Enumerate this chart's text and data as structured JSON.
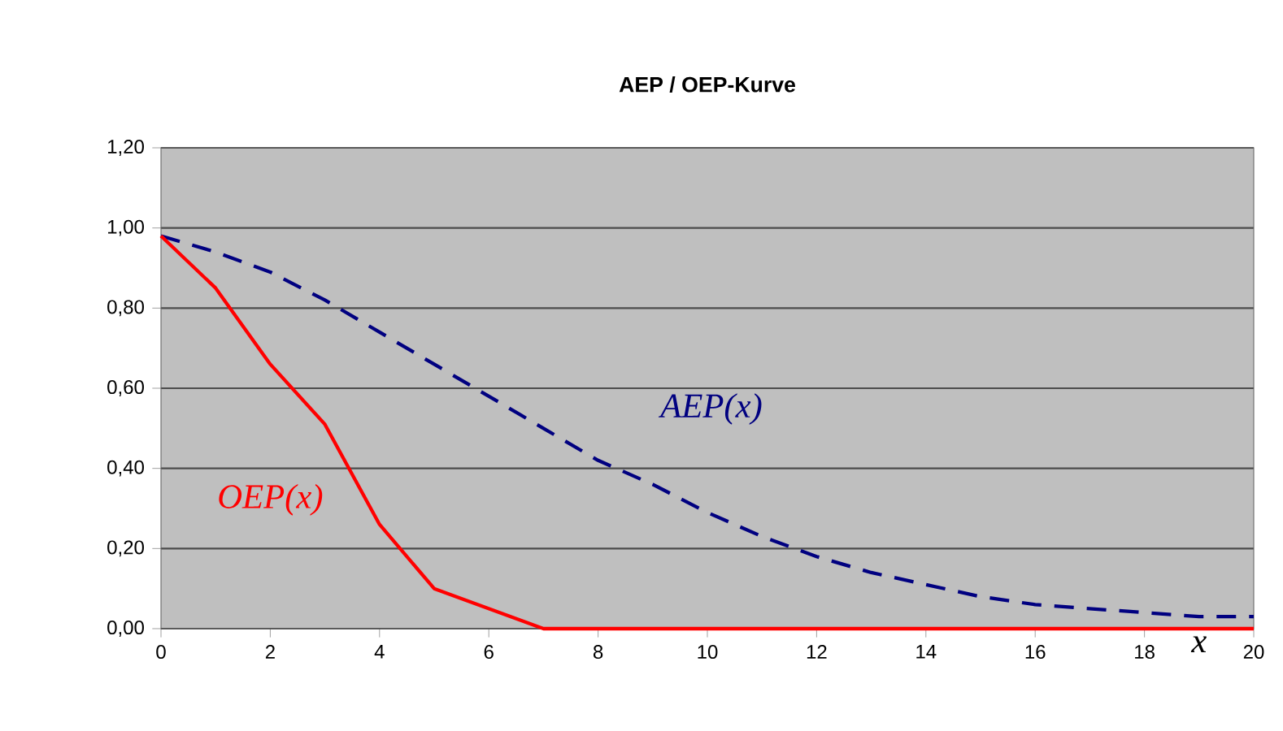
{
  "chart_data": {
    "type": "line",
    "title": "AEP / OEP-Kurve",
    "xlabel": "x",
    "x": [
      0,
      1,
      2,
      3,
      4,
      5,
      6,
      7,
      8,
      9,
      10,
      11,
      12,
      13,
      14,
      15,
      16,
      17,
      18,
      19,
      20
    ],
    "series": [
      {
        "name": "AEP(x)",
        "color": "#000080",
        "line_style": "dashed",
        "values": [
          0.98,
          0.94,
          0.89,
          0.82,
          0.74,
          0.66,
          0.58,
          0.5,
          0.42,
          0.36,
          0.29,
          0.23,
          0.18,
          0.14,
          0.11,
          0.08,
          0.06,
          0.05,
          0.04,
          0.03,
          0.03
        ]
      },
      {
        "name": "OEP(x)",
        "color": "#ff0000",
        "line_style": "solid",
        "values": [
          0.98,
          0.85,
          0.66,
          0.51,
          0.26,
          0.1,
          0.05,
          0,
          0,
          0,
          0,
          0,
          0,
          0,
          0,
          0,
          0,
          0,
          0,
          0,
          0
        ]
      }
    ],
    "xlim": [
      0,
      20
    ],
    "xticks": [
      0,
      2,
      4,
      6,
      8,
      10,
      12,
      14,
      16,
      18,
      20
    ],
    "ylim": [
      0,
      1.2
    ],
    "yticks": [
      {
        "value": 0,
        "label": "0,00"
      },
      {
        "value": 0.2,
        "label": "0,20"
      },
      {
        "value": 0.4,
        "label": "0,40"
      },
      {
        "value": 0.6,
        "label": "0,60"
      },
      {
        "value": 0.8,
        "label": "0,80"
      },
      {
        "value": 1.0,
        "label": "1,00"
      },
      {
        "value": 1.2,
        "label": "1,20"
      }
    ],
    "grid": "y",
    "legend": false,
    "marker": "none"
  }
}
